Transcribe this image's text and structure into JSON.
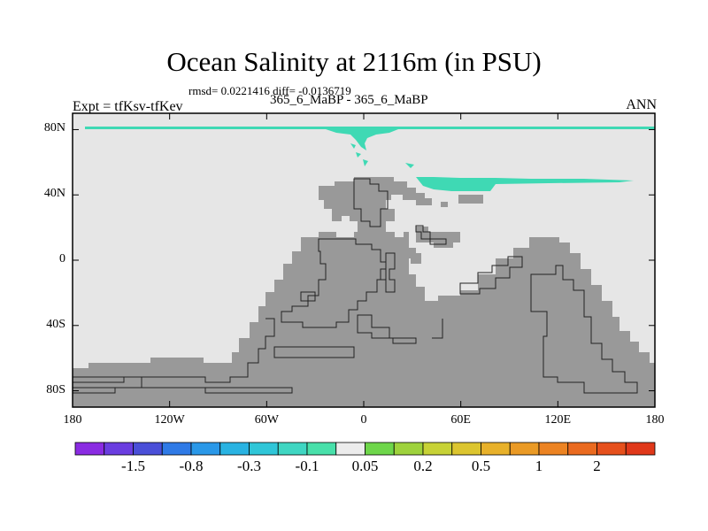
{
  "title": "Ocean Salinity at 2116m (in PSU)",
  "stats_line": "rmsd= 0.0221416 diff= -0.0136719",
  "experiment_label": "Expt = tfKsv-tfKev",
  "cases_label": "365_6_MaBP - 365_6_MaBP",
  "season_label": "ANN",
  "y_ticks": [
    {
      "label": "80N",
      "lat": 80
    },
    {
      "label": "40N",
      "lat": 40
    },
    {
      "label": "0",
      "lat": 0
    },
    {
      "label": "40S",
      "lat": -40
    },
    {
      "label": "80S",
      "lat": -80
    }
  ],
  "x_ticks": [
    {
      "label": "180",
      "lon": -180
    },
    {
      "label": "120W",
      "lon": -120
    },
    {
      "label": "60W",
      "lon": -60
    },
    {
      "label": "0",
      "lon": 0
    },
    {
      "label": "60E",
      "lon": 60
    },
    {
      "label": "120E",
      "lon": 120
    },
    {
      "label": "180",
      "lon": 180
    }
  ],
  "colorbar": {
    "colors": [
      "#8a2be2",
      "#6a3de0",
      "#4a4fd8",
      "#2f7ae6",
      "#2a98e8",
      "#29b3e2",
      "#2fc6d8",
      "#3fd6c2",
      "#48e0aa",
      "#ececec",
      "#6ed64a",
      "#9ed23c",
      "#c7d236",
      "#dcc52f",
      "#e8b12a",
      "#ea9a25",
      "#ec8322",
      "#ea6a1f",
      "#e6501c",
      "#e0381a"
    ],
    "labels": [
      {
        "label": "-1.5",
        "boundary": 2
      },
      {
        "label": "-0.8",
        "boundary": 4
      },
      {
        "label": "-0.3",
        "boundary": 6
      },
      {
        "label": "-0.1",
        "boundary": 8
      },
      {
        "label": "0.05",
        "boundary": 10
      },
      {
        "label": "0.2",
        "boundary": 12
      },
      {
        "label": "0.5",
        "boundary": 14
      },
      {
        "label": "1",
        "boundary": 16
      },
      {
        "label": "2",
        "boundary": 18
      }
    ]
  },
  "colors": {
    "ocean_background": "#e6e6e6",
    "land": "#999999",
    "anomaly_fill": "#3fd9b4"
  }
}
